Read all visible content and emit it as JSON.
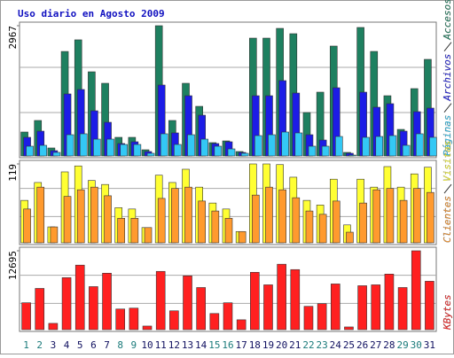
{
  "chart_data": {
    "type": "bar",
    "title": "Uso diario en Agosto 2009",
    "categories": [
      "1",
      "2",
      "3",
      "4",
      "5",
      "6",
      "7",
      "8",
      "9",
      "10",
      "11",
      "12",
      "13",
      "14",
      "15",
      "16",
      "17",
      "18",
      "19",
      "20",
      "21",
      "22",
      "23",
      "24",
      "25",
      "26",
      "27",
      "28",
      "29",
      "30",
      "31"
    ],
    "category_colors": [
      "#1a7a7a",
      "#1a7a7a",
      "#101060",
      "#101060",
      "#101060",
      "#101060",
      "#101060",
      "#1a7a7a",
      "#1a7a7a",
      "#101060",
      "#101060",
      "#101060",
      "#101060",
      "#101060",
      "#1a7a7a",
      "#1a7a7a",
      "#101060",
      "#101060",
      "#101060",
      "#101060",
      "#101060",
      "#1a7a7a",
      "#1a7a7a",
      "#101060",
      "#101060",
      "#101060",
      "#101060",
      "#101060",
      "#1a7a7a",
      "#1a7a7a",
      "#101060"
    ],
    "panels": [
      {
        "ylim": [
          0,
          2967
        ],
        "yticks": [
          2967
        ],
        "series": [
          {
            "name": "Accesos",
            "color": "#1e8060",
            "values": [
              545,
              808,
              182,
              2380,
              2645,
              1917,
              1655,
              424,
              424,
              141,
              2967,
              808,
              1655,
              1130,
              303,
              343,
              101,
              2684,
              2684,
              2906,
              2785,
              989,
              1453,
              2503,
              81,
              2927,
              2381,
              1372,
              605,
              1534,
              2200
            ]
          },
          {
            "name": "Archivos",
            "color": "#1c1ce6",
            "values": [
              424,
              565,
              121,
              1413,
              1514,
              1029,
              767,
              283,
              323,
              101,
              1615,
              525,
              1372,
              928,
              283,
              323,
              81,
              1372,
              1372,
              1716,
              1433,
              484,
              363,
              1554,
              61,
              1453,
              1110,
              1191,
              565,
              1009,
              1090
            ]
          },
          {
            "name": "Páginas",
            "color": "#33c8f5",
            "values": [
              222,
              242,
              81,
              484,
              505,
              383,
              383,
              262,
              262,
              61,
              505,
              262,
              484,
              383,
              222,
              161,
              61,
              464,
              484,
              545,
              525,
              222,
              222,
              444,
              20,
              424,
              444,
              464,
              242,
              505,
              424
            ]
          }
        ]
      },
      {
        "ylim": [
          0,
          119
        ],
        "yticks": [
          119
        ],
        "series": [
          {
            "name": "Visitas",
            "color": "#ffff33",
            "values": [
              64,
              91,
              24,
              107,
              116,
              94,
              88,
              53,
              51,
              23,
              102,
              91,
              111,
              84,
              60,
              51,
              17,
              119,
              119,
              118,
              99,
              64,
              57,
              96,
              27,
              96,
              84,
              115,
              84,
              104,
              114
            ]
          },
          {
            "name": "Clientes",
            "color": "#ff9a2e",
            "values": [
              51,
              84,
              24,
              70,
              80,
              84,
              71,
              37,
              37,
              23,
              67,
              82,
              84,
              63,
              48,
              37,
              17,
              72,
              84,
              80,
              68,
              48,
              43,
              63,
              16,
              60,
              80,
              82,
              64,
              82,
              76
            ]
          }
        ]
      },
      {
        "ylim": [
          0,
          12695
        ],
        "yticks": [
          12695
        ],
        "series": [
          {
            "name": "KBytes",
            "color": "#ff2020",
            "values": [
              4328,
              6636,
              1010,
              8368,
              10387,
              6925,
              9088,
              3318,
              3462,
              577,
              9377,
              3030,
              8656,
              6780,
              2597,
              4328,
              1587,
              9233,
              7213,
              10531,
              9665,
              3751,
              4184,
              7358,
              433,
              7069,
              7213,
              8944,
              6780,
              12695,
              7790
            ]
          }
        ]
      }
    ]
  }
}
